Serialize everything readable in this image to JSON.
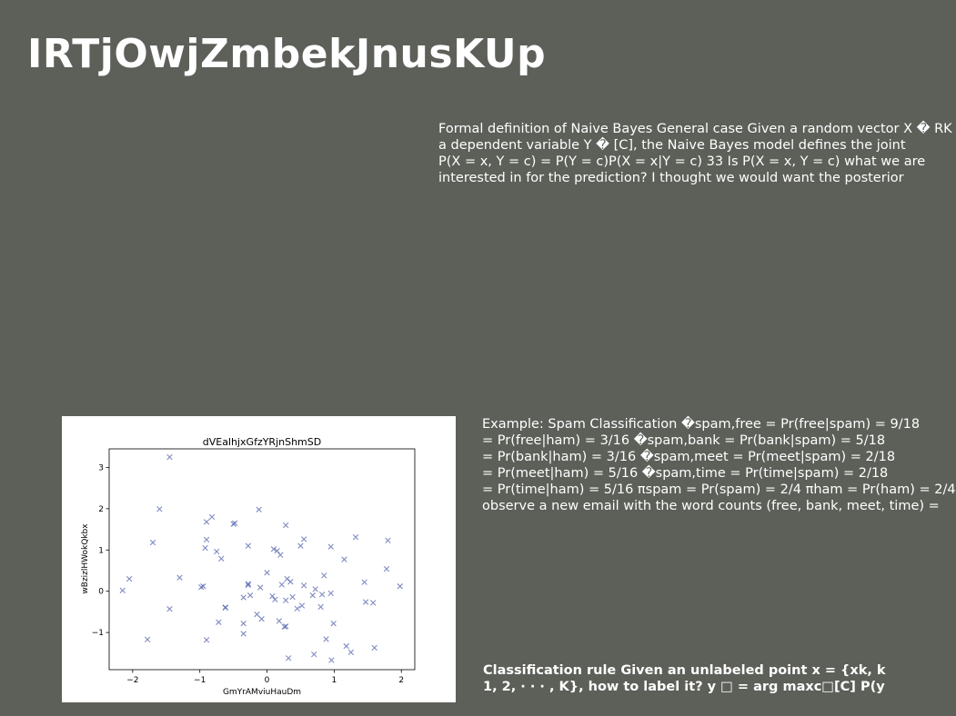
{
  "slide": {
    "title": "IRTjOwjZmbekJnusKUp",
    "paragraph_1": [
      "Formal definition of Naive Bayes General case Given a random vector X � RK",
      "a dependent variable Y � [C], the Naive Bayes model defines the joint",
      "P(X = x, Y = c) = P(Y = c)P(X = x|Y = c) 33 Is P(X = x, Y = c) what we are",
      "interested in for the prediction? I thought we would want the posterior"
    ],
    "paragraph_2": [
      "Example: Spam Classification �spam,free = Pr(free|spam) = 9/18",
      "= Pr(free|ham) = 3/16 �spam,bank = Pr(bank|spam) = 5/18",
      "= Pr(bank|ham) = 3/16 �spam,meet = Pr(meet|spam) = 2/18",
      "= Pr(meet|ham) = 5/16 �spam,time = Pr(time|spam) = 2/18",
      "= Pr(time|ham) = 5/16 πspam = Pr(spam) = 2/4 πham = Pr(ham) = 2/4",
      "observe a new email with the word counts (free, bank, meet, time) ="
    ],
    "paragraph_3": [
      "Classification rule Given an unlabeled point x = {xk, k",
      "1, 2, · · · , K}, how to label it? y □ = arg maxc□[C] P(y"
    ]
  },
  "chart_data": {
    "type": "scatter",
    "title": "dVEalhjxGfzYRjnShmSD",
    "xlabel": "GmYrAMviuHauDm",
    "ylabel": "wBzizlHWokQkbx",
    "xlim": [
      -2.35,
      2.2
    ],
    "ylim": [
      -1.9,
      3.45
    ],
    "xticks": [
      -2,
      -1,
      0,
      1,
      2
    ],
    "yticks": [
      -1,
      0,
      1,
      2,
      3
    ],
    "marker": "x",
    "color": "#4a5aa8",
    "points": [
      [
        -2.15,
        0.02
      ],
      [
        -2.05,
        0.3
      ],
      [
        -1.78,
        -1.17
      ],
      [
        -1.7,
        1.18
      ],
      [
        -1.6,
        1.99
      ],
      [
        -1.45,
        -0.43
      ],
      [
        -1.45,
        3.25
      ],
      [
        -1.3,
        0.33
      ],
      [
        -0.98,
        0.1
      ],
      [
        -0.95,
        0.12
      ],
      [
        -0.92,
        1.05
      ],
      [
        -0.9,
        1.25
      ],
      [
        -0.9,
        1.68
      ],
      [
        -0.9,
        -1.18
      ],
      [
        -0.82,
        1.8
      ],
      [
        -0.75,
        0.96
      ],
      [
        -0.72,
        -0.75
      ],
      [
        -0.68,
        0.79
      ],
      [
        -0.62,
        -0.4
      ],
      [
        -0.62,
        -0.39
      ],
      [
        -0.5,
        1.63
      ],
      [
        -0.48,
        1.65
      ],
      [
        -0.35,
        -1.03
      ],
      [
        -0.35,
        -0.78
      ],
      [
        -0.35,
        -0.15
      ],
      [
        -0.28,
        0.15
      ],
      [
        -0.28,
        0.18
      ],
      [
        -0.28,
        1.1
      ],
      [
        -0.25,
        -0.1
      ],
      [
        -0.15,
        -0.56
      ],
      [
        -0.12,
        1.98
      ],
      [
        -0.1,
        0.09
      ],
      [
        -0.08,
        -0.67
      ],
      [
        0.0,
        0.45
      ],
      [
        0.08,
        -0.12
      ],
      [
        0.1,
        1.02
      ],
      [
        0.12,
        -0.2
      ],
      [
        0.15,
        0.98
      ],
      [
        0.18,
        -0.72
      ],
      [
        0.2,
        0.88
      ],
      [
        0.22,
        0.16
      ],
      [
        0.26,
        -0.86
      ],
      [
        0.28,
        -0.85
      ],
      [
        0.28,
        1.6
      ],
      [
        0.28,
        -0.22
      ],
      [
        0.3,
        0.3
      ],
      [
        0.32,
        -1.62
      ],
      [
        0.35,
        0.23
      ],
      [
        0.38,
        -0.14
      ],
      [
        0.45,
        -0.42
      ],
      [
        0.5,
        1.1
      ],
      [
        0.52,
        -0.35
      ],
      [
        0.55,
        1.26
      ],
      [
        0.55,
        0.14
      ],
      [
        0.68,
        -0.1
      ],
      [
        0.7,
        -1.53
      ],
      [
        0.72,
        0.05
      ],
      [
        0.8,
        -0.38
      ],
      [
        0.82,
        -0.08
      ],
      [
        0.85,
        0.38
      ],
      [
        0.88,
        -1.16
      ],
      [
        0.95,
        -0.05
      ],
      [
        0.95,
        1.08
      ],
      [
        0.96,
        -1.67
      ],
      [
        0.99,
        -0.78
      ],
      [
        1.15,
        0.77
      ],
      [
        1.18,
        -1.33
      ],
      [
        1.25,
        -1.48
      ],
      [
        1.32,
        1.31
      ],
      [
        1.45,
        0.22
      ],
      [
        1.47,
        -0.26
      ],
      [
        1.58,
        -0.28
      ],
      [
        1.6,
        -1.37
      ],
      [
        1.78,
        0.54
      ],
      [
        1.8,
        1.23
      ],
      [
        1.98,
        0.12
      ]
    ]
  }
}
